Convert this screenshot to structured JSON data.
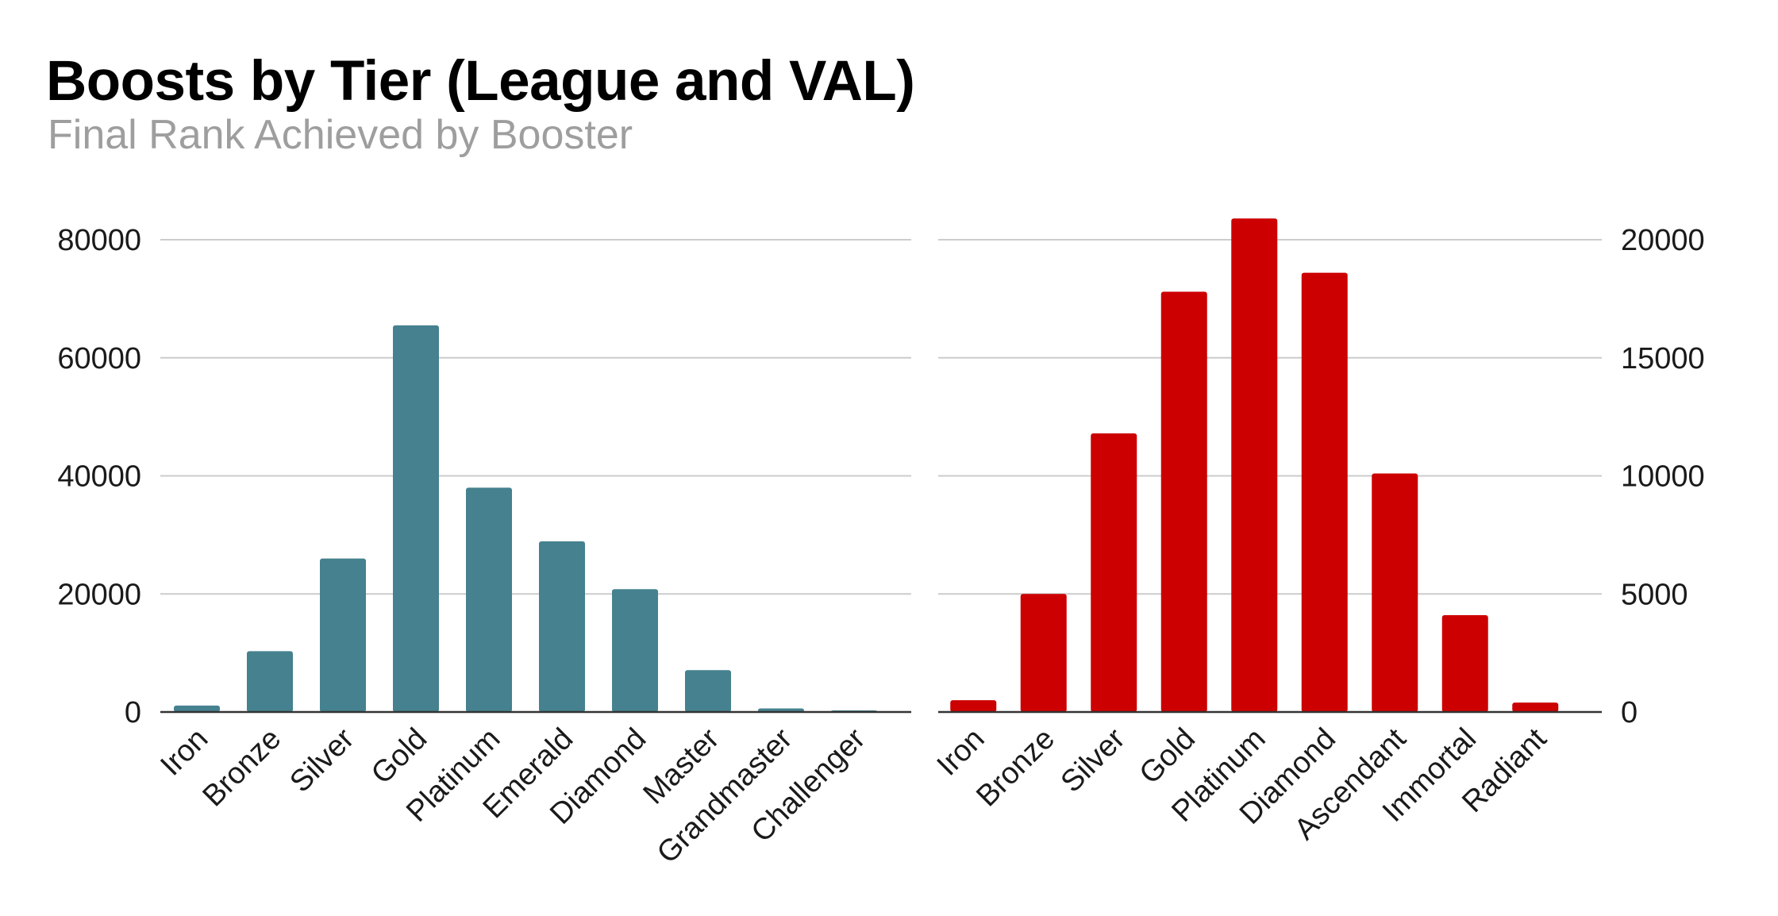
{
  "title": "Boosts by Tier (League and VAL)",
  "subtitle": "Final Rank Achieved by Booster",
  "chart_data": [
    {
      "type": "bar",
      "name": "League",
      "title": "",
      "xlabel": "",
      "ylabel": "",
      "color": "#45818e",
      "axis_side": "left",
      "ylim": [
        0,
        80000
      ],
      "yticks": [
        0,
        20000,
        40000,
        60000,
        80000
      ],
      "grid": true,
      "categories": [
        "Iron",
        "Bronze",
        "Silver",
        "Gold",
        "Platinum",
        "Emerald",
        "Diamond",
        "Master",
        "Grandmaster",
        "Challenger"
      ],
      "values": [
        1100,
        10300,
        26000,
        65500,
        38000,
        28900,
        20800,
        7100,
        600,
        200
      ]
    },
    {
      "type": "bar",
      "name": "VAL",
      "title": "",
      "xlabel": "",
      "ylabel": "",
      "color": "#cc0000",
      "axis_side": "right",
      "ylim": [
        0,
        20000
      ],
      "yticks": [
        0,
        5000,
        10000,
        15000,
        20000
      ],
      "grid": true,
      "categories": [
        "Iron",
        "Bronze",
        "Silver",
        "Gold",
        "Platinum",
        "Diamond",
        "Ascendant",
        "Immortal",
        "Radiant"
      ],
      "values": [
        500,
        5000,
        11800,
        17800,
        20900,
        18600,
        10100,
        4100,
        400
      ]
    }
  ]
}
